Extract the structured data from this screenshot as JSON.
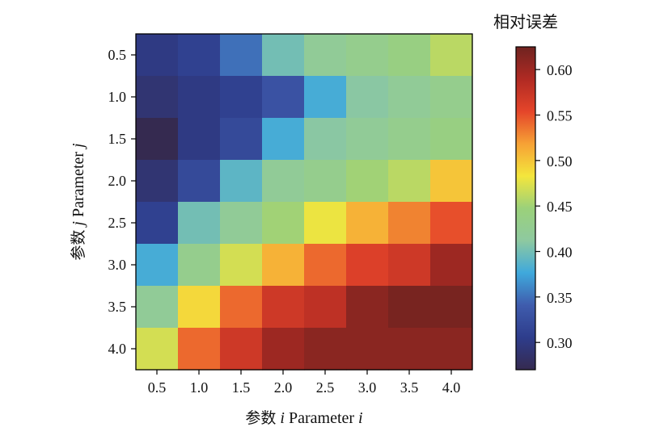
{
  "chart_data": {
    "type": "heatmap",
    "title": "",
    "xlabel_cn": "参数",
    "xlabel_var": "i",
    "xlabel_en": "Parameter",
    "ylabel_cn": "参数",
    "ylabel_var": "j",
    "ylabel_en": "Parameter",
    "x": [
      "0.5",
      "1.0",
      "1.5",
      "2.0",
      "2.5",
      "3.0",
      "3.5",
      "4.0"
    ],
    "y": [
      "0.5",
      "1.0",
      "1.5",
      "2.0",
      "2.5",
      "3.0",
      "3.5",
      "4.0"
    ],
    "values": [
      [
        0.3,
        0.31,
        0.35,
        0.4,
        0.42,
        0.43,
        0.44,
        0.46
      ],
      [
        0.29,
        0.3,
        0.31,
        0.33,
        0.38,
        0.41,
        0.42,
        0.43
      ],
      [
        0.27,
        0.3,
        0.32,
        0.38,
        0.41,
        0.42,
        0.43,
        0.44
      ],
      [
        0.29,
        0.32,
        0.39,
        0.42,
        0.43,
        0.45,
        0.46,
        0.5
      ],
      [
        0.31,
        0.4,
        0.42,
        0.45,
        0.48,
        0.51,
        0.53,
        0.55
      ],
      [
        0.38,
        0.43,
        0.47,
        0.51,
        0.54,
        0.56,
        0.57,
        0.6
      ],
      [
        0.42,
        0.49,
        0.54,
        0.57,
        0.58,
        0.61,
        0.62,
        0.62
      ],
      [
        0.47,
        0.54,
        0.57,
        0.6,
        0.61,
        0.61,
        0.61,
        0.61
      ]
    ],
    "colorbar": {
      "title": "相对误差",
      "range": [
        0.27,
        0.625
      ],
      "ticks": [
        "0.30",
        "0.35",
        "0.40",
        "0.45",
        "0.50",
        "0.55",
        "0.60"
      ],
      "colormap": [
        "#352a50",
        "#2e3d8c",
        "#3f5cad",
        "#3fa9dc",
        "#8ec9a0",
        "#9bd17a",
        "#f4e63c",
        "#f6a135",
        "#e5452a",
        "#b02a23",
        "#6f2320"
      ]
    },
    "grid": false,
    "legend": "none"
  }
}
